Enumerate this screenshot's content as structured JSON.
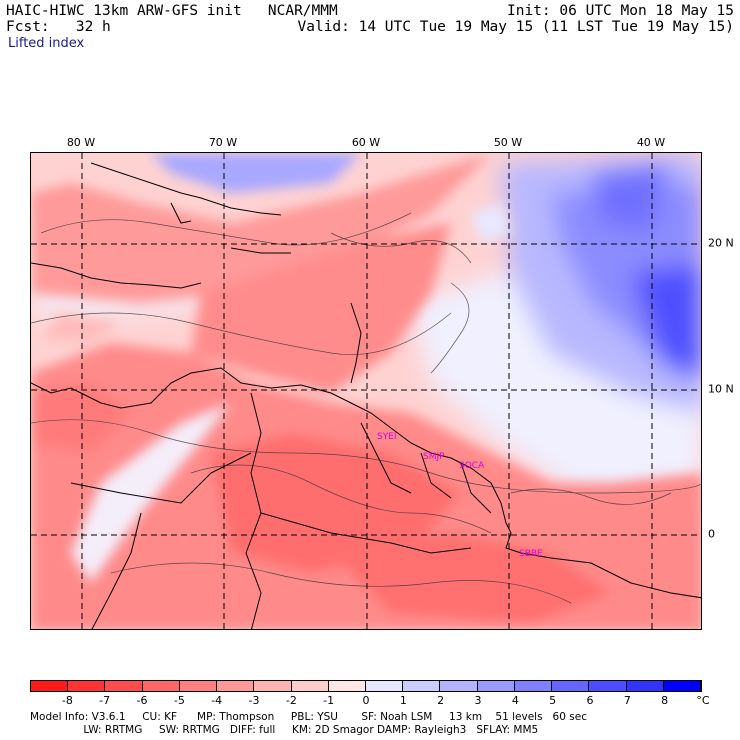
{
  "header": {
    "model_title": "HAIC-HIWC 13km ARW-GFS init   NCAR/MMM",
    "init": "Init: 06 UTC Mon 18 May 15",
    "fcst": "Fcst:   32 h",
    "valid": "Valid: 14 UTC Tue 19 May 15 (11 LST Tue 19 May 15)",
    "field": "Lifted index"
  },
  "map": {
    "lon_labels": [
      "80 W",
      "70 W",
      "60 W",
      "50 W",
      "40 W"
    ],
    "lat_labels": [
      "20 N",
      "10 N",
      "0"
    ],
    "stations": [
      "SYEI",
      "SMJP",
      "SOCA",
      "SBBE"
    ]
  },
  "colorbar": {
    "ticks": [
      "-8",
      "-7",
      "-6",
      "-5",
      "-4",
      "-3",
      "-2",
      "-1",
      "0",
      "1",
      "2",
      "3",
      "4",
      "5",
      "6",
      "7",
      "8"
    ],
    "unit": "°C",
    "colors": [
      "#ff1a1a",
      "#ff3333",
      "#ff4d4d",
      "#ff6666",
      "#ff8080",
      "#ff9999",
      "#ffb3b3",
      "#ffcccc",
      "#ffe6e6",
      "#e6e6ff",
      "#ccccff",
      "#b3b3ff",
      "#9999ff",
      "#8080ff",
      "#6666ff",
      "#4d4dff",
      "#3333ff",
      "#0000ff"
    ]
  },
  "footer": {
    "line1": "Model Info: V3.6.1     CU: KF      MP: Thompson     PBL: YSU       SF: Noah LSM     13 km    51 levels   60 sec",
    "line2": "                LW: RRTMG     SW: RRTMG   DIFF: full     KM: 2D Smagor DAMP: Rayleigh3   SFLAY: MM5"
  }
}
